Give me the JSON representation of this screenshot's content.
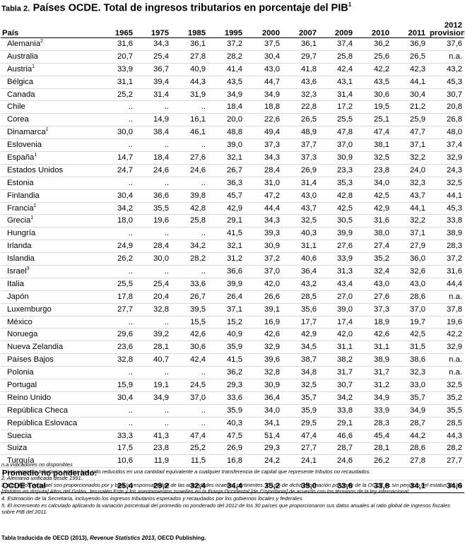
{
  "title": {
    "table_label": "Tabla 2.",
    "main": "Países OCDE. Total de ingresos tributarios en porcentaje del PIB",
    "sup": "1"
  },
  "headers": {
    "country": "País",
    "years": [
      "1965",
      "1975",
      "1985",
      "1995",
      "2000",
      "2007",
      "2009",
      "2010",
      "2011"
    ],
    "last_line1": "2012",
    "last_line2": "provision."
  },
  "rows": [
    {
      "name": "Alemania",
      "sup": "2",
      "values": [
        "31,6",
        "34,3",
        "36,1",
        "37,2",
        "37,5",
        "36,1",
        "37,4",
        "36,2",
        "36,9",
        "37,6"
      ]
    },
    {
      "name": "Australia",
      "sup": "",
      "values": [
        "20,7",
        "25,4",
        "27,8",
        "28,2",
        "30,4",
        "29,7",
        "25,8",
        "25,6",
        "26,5",
        "n.a."
      ]
    },
    {
      "name": "Austria",
      "sup": "1",
      "values": [
        "33,9",
        "36,7",
        "40,9",
        "41,4",
        "43,0",
        "41,8",
        "42,4",
        "42,2",
        "42,3",
        "43,2"
      ]
    },
    {
      "name": "Bélgica",
      "sup": "",
      "values": [
        "31,1",
        "39,4",
        "44,3",
        "43,5",
        "44,7",
        "43,6",
        "43,1",
        "43,5",
        "44,1",
        "45,3"
      ]
    },
    {
      "name": "Canada",
      "sup": "",
      "values": [
        "25,2",
        "31,4",
        "31,9",
        "34,9",
        "34,9",
        "32,3",
        "31,4",
        "30,6",
        "30,4",
        "30,7"
      ]
    },
    {
      "name": "Chile",
      "sup": "",
      "values": [
        "..",
        "..",
        "..",
        "18,4",
        "18,8",
        "22,8",
        "17,2",
        "19,5",
        "21,2",
        "20,8"
      ]
    },
    {
      "name": "Corea",
      "sup": "",
      "values": [
        "..",
        "14,9",
        "16,1",
        "20,0",
        "22,6",
        "26,5",
        "25,5",
        "25,1",
        "25,9",
        "26,8"
      ]
    },
    {
      "name": "Dinamarca",
      "sup": "1",
      "values": [
        "30,0",
        "38,4",
        "46,1",
        "48,8",
        "49,4",
        "48,9",
        "47,8",
        "47,4",
        "47,7",
        "48,0"
      ]
    },
    {
      "name": "Eslovenia",
      "sup": "",
      "values": [
        "..",
        "..",
        "..",
        "39,0",
        "37,3",
        "37,7",
        "37,0",
        "38,1",
        "37,1",
        "37,4"
      ]
    },
    {
      "name": "España",
      "sup": "1",
      "values": [
        "14,7",
        "18,4",
        "27,6",
        "32,1",
        "34,3",
        "37,3",
        "30,9",
        "32,5",
        "32,2",
        "32,9"
      ]
    },
    {
      "name": "Estados Unidos",
      "sup": "",
      "values": [
        "24,7",
        "24,6",
        "24,6",
        "26,7",
        "28,4",
        "26,9",
        "23,3",
        "23,8",
        "24,0",
        "24,3"
      ]
    },
    {
      "name": "Estonia",
      "sup": "",
      "values": [
        "..",
        "..",
        "..",
        "36,3",
        "31,0",
        "31,4",
        "35,3",
        "34,0",
        "32,3",
        "32,5"
      ]
    },
    {
      "name": "Finlandia",
      "sup": "",
      "values": [
        "30,4",
        "36,6",
        "39,8",
        "45,7",
        "47,2",
        "43,0",
        "42,8",
        "42,5",
        "43,7",
        "44,1"
      ]
    },
    {
      "name": "Francia",
      "sup": "1",
      "values": [
        "34,2",
        "35,5",
        "42,8",
        "42,9",
        "44,4",
        "43,7",
        "42,5",
        "42,9",
        "44,1",
        "45,3"
      ]
    },
    {
      "name": "Grecia",
      "sup": "1",
      "values": [
        "18,0",
        "19,6",
        "25,8",
        "29,1",
        "34,3",
        "32,5",
        "30,5",
        "31,6",
        "32,2",
        "33,8"
      ]
    },
    {
      "name": "Hungría",
      "sup": "",
      "values": [
        "..",
        "..",
        "..",
        "41,5",
        "39,3",
        "40,3",
        "39,9",
        "38,0",
        "37,1",
        "38,9"
      ]
    },
    {
      "name": "Irlanda",
      "sup": "",
      "values": [
        "24,9",
        "28,4",
        "34,2",
        "32,1",
        "30,9",
        "31,1",
        "27,6",
        "27,4",
        "27,9",
        "28,3"
      ]
    },
    {
      "name": "Islandia",
      "sup": "",
      "values": [
        "26,2",
        "30,0",
        "28,2",
        "31,2",
        "37,2",
        "40,6",
        "33,9",
        "35,2",
        "36,0",
        "37,2"
      ]
    },
    {
      "name": "Israel",
      "sup": "3",
      "values": [
        "..",
        "..",
        "..",
        "36,6",
        "37,0",
        "36,4",
        "31,3",
        "32,4",
        "32,6",
        "31,6"
      ]
    },
    {
      "name": "Italia",
      "sup": "",
      "values": [
        "25,5",
        "25,4",
        "33,6",
        "39,9",
        "42,0",
        "43,2",
        "43,4",
        "43,0",
        "43,0",
        "44,4"
      ]
    },
    {
      "name": "Japón",
      "sup": "",
      "values": [
        "17,8",
        "20,4",
        "26,7",
        "26,4",
        "26,6",
        "28,5",
        "27,0",
        "27,6",
        "28,6",
        "n.a."
      ]
    },
    {
      "name": "Luxemburgo",
      "sup": "",
      "values": [
        "27,7",
        "32,8",
        "39,5",
        "37,1",
        "39,1",
        "35,6",
        "39,0",
        "37,3",
        "37,0",
        "37,8"
      ]
    },
    {
      "name": "México",
      "sup": "",
      "values": [
        "..",
        "..",
        "15,5",
        "15,2",
        "16,9",
        "17,7",
        "17,4",
        "18,9",
        "19,7",
        "19,6"
      ]
    },
    {
      "name": "Noruega",
      "sup": "",
      "values": [
        "29,6",
        "39,2",
        "42,6",
        "40,9",
        "42,6",
        "42,9",
        "42,0",
        "42,6",
        "42,5",
        "42,2"
      ]
    },
    {
      "name": "Nueva Zelandia",
      "sup": "",
      "values": [
        "23,6",
        "28,1",
        "30,6",
        "35,9",
        "32,9",
        "34,5",
        "31,1",
        "31,1",
        "31,5",
        "32,9"
      ]
    },
    {
      "name": "Países Bajos",
      "sup": "",
      "values": [
        "32,8",
        "40,7",
        "42,4",
        "41,5",
        "39,6",
        "38,7",
        "38,2",
        "38,9",
        "38,6",
        "n.a."
      ]
    },
    {
      "name": "Polonia",
      "sup": "",
      "values": [
        "..",
        "..",
        "..",
        "36,2",
        "32,8",
        "34,8",
        "31,7",
        "31,7",
        "32,3",
        "n.a."
      ]
    },
    {
      "name": "Portugal",
      "sup": "",
      "values": [
        "15,9",
        "19,1",
        "24,5",
        "29,3",
        "30,9",
        "32,5",
        "30,7",
        "31,2",
        "33,0",
        "32,5"
      ]
    },
    {
      "name": "Reino Unido",
      "sup": "",
      "values": [
        "30,4",
        "34,9",
        "37,0",
        "33,6",
        "36,4",
        "35,7",
        "34,2",
        "34,9",
        "35,7",
        "35,2"
      ]
    },
    {
      "name": "República Checa",
      "sup": "",
      "values": [
        "..",
        "..",
        "..",
        "35,9",
        "34,0",
        "35,9",
        "33,8",
        "33,9",
        "34,9",
        "35,5"
      ]
    },
    {
      "name": "República Eslovaca",
      "sup": "",
      "values": [
        "..",
        "..",
        "..",
        "40,3",
        "34,1",
        "29,5",
        "29,1",
        "28,3",
        "28,7",
        "28,5"
      ]
    },
    {
      "name": "Suecia",
      "sup": "",
      "values": [
        "33,3",
        "41,3",
        "47,4",
        "47,5",
        "51,4",
        "47,4",
        "46,6",
        "45,4",
        "44,2",
        "44,3"
      ]
    },
    {
      "name": "Suiza",
      "sup": "",
      "values": [
        "17,5",
        "23,8",
        "25,2",
        "26,9",
        "29,3",
        "27,7",
        "28,7",
        "28,1",
        "28,6",
        "28,2"
      ]
    },
    {
      "name": "Turquía",
      "sup": "",
      "values": [
        "10,6",
        "11,9",
        "11,5",
        "16,8",
        "24,2",
        "24,1",
        "24,6",
        "26,2",
        "27,8",
        "27,7"
      ]
    }
  ],
  "average_label": "Promedio no ponderado:",
  "total": {
    "name": "OCDE Total",
    "values": [
      "25,4",
      "29,2",
      "32,4",
      "34,4",
      "35,2",
      "35,0",
      "33,6",
      "33,8",
      "34,1",
      "34,6"
    ]
  },
  "notes": [
    "n.a indicadores no disponibles",
    "1. Los ingresos tributarios totales han sido reducidos en una cantidad equivalente a cualquier transferencia de capital que represente tributos no recaudados.",
    "2. Alemania unificada desde 1991.",
    "3. Los datos de Israel son proporcionados por y bajo la responsabilidad de las autoridades israelíes pertinentes. El uso de dicha información por parte de la OCDE es sin perjuicio del estatus de los [distritos en disputa] Altos del Golán, Jerusalén Este y los asentamientos israelíes en la Franja Occidental [de Cisjordania] de acuerdo con los términos de la ley internacional.",
    "4. Estimación de la Secretaría, incluyendo los ingresos tributarios esperados y recaudados por los gobiernos locales y federales.",
    "5. El incremento es calculado aplicando la variación porcentual del promedio no ponderado del 2012 de los 30 países que proporcionaron sus datos anuales al ratio global de ingresos fiscales sobre PIB del 2011."
  ],
  "source": {
    "prefix": "Tabla traducida de OECD (2013),",
    "italic": "Revenue Statistics 2013",
    "suffix": ", OECD Publishing."
  }
}
